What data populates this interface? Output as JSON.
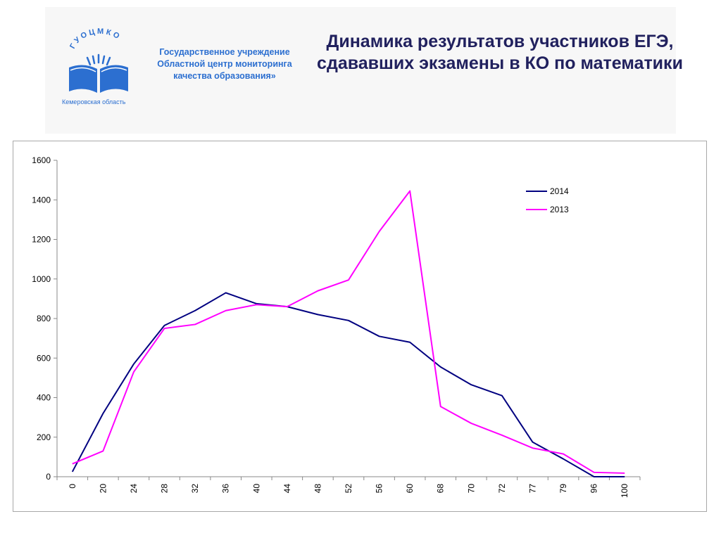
{
  "header": {
    "title": "Динамика результатов участников ЕГЭ, сдававших экзамены в КО по математики",
    "org_line1": "Государственное учреждение",
    "org_line2": "Областной центр мониторинга",
    "org_line3": "качества образования»",
    "logo_text": "ГУОЦМКО",
    "logo_region": "Кемеровская область"
  },
  "colors": {
    "series_2014": "#000080",
    "series_2013": "#ff00ff",
    "title": "#21215e",
    "org": "#2c6fd0"
  },
  "chart_data": {
    "type": "line",
    "categories": [
      "0",
      "20",
      "24",
      "28",
      "32",
      "36",
      "40",
      "44",
      "48",
      "52",
      "56",
      "60",
      "68",
      "70",
      "72",
      "77",
      "79",
      "96",
      "100"
    ],
    "ylim": [
      0,
      1600
    ],
    "yticks": [
      "0",
      "200",
      "400",
      "600",
      "800",
      "1000",
      "1200",
      "1400",
      "1600"
    ],
    "legend_position": "top-right",
    "grid": false,
    "series": [
      {
        "name": "2014",
        "values": [
          25,
          320,
          570,
          765,
          840,
          930,
          875,
          860,
          820,
          790,
          710,
          680,
          555,
          465,
          410,
          175,
          90,
          0,
          0
        ]
      },
      {
        "name": "2013",
        "values": [
          65,
          130,
          530,
          750,
          770,
          840,
          870,
          860,
          940,
          995,
          1240,
          1445,
          355,
          270,
          210,
          145,
          115,
          22,
          18
        ]
      }
    ]
  }
}
